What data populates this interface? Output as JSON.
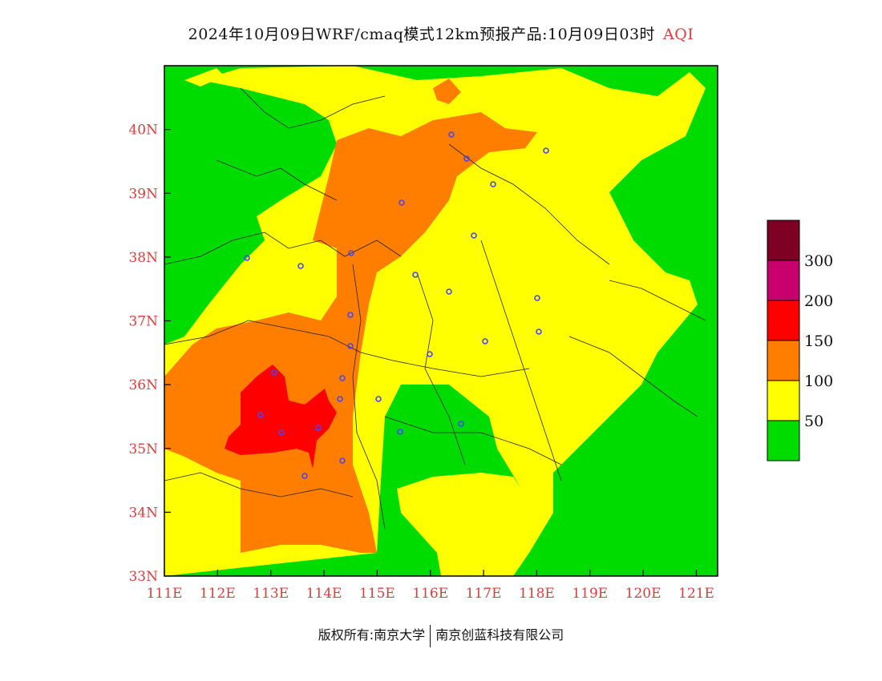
{
  "title": {
    "main": "2024年10月09日WRF/cmaq模式12km预报产品:10月09日03时",
    "variable": "AQI"
  },
  "map": {
    "lon_ticks": [
      "111E",
      "112E",
      "113E",
      "114E",
      "115E",
      "116E",
      "117E",
      "118E",
      "119E",
      "120E",
      "121E"
    ],
    "lat_ticks": [
      "33N",
      "34N",
      "35N",
      "36N",
      "37N",
      "38N",
      "39N",
      "40N"
    ],
    "lon_range": [
      111,
      121.4
    ],
    "lat_range": [
      33,
      41
    ]
  },
  "legend": {
    "labels": [
      "50",
      "100",
      "150",
      "200",
      "300"
    ],
    "colors": [
      "#00dc00",
      "#ffff00",
      "#ff7e00",
      "#ff0000",
      "#c8006e",
      "#7e0023"
    ]
  },
  "footer": {
    "left": "版权所有:南京大学",
    "right": "南京创蓝科技有限公司"
  }
}
